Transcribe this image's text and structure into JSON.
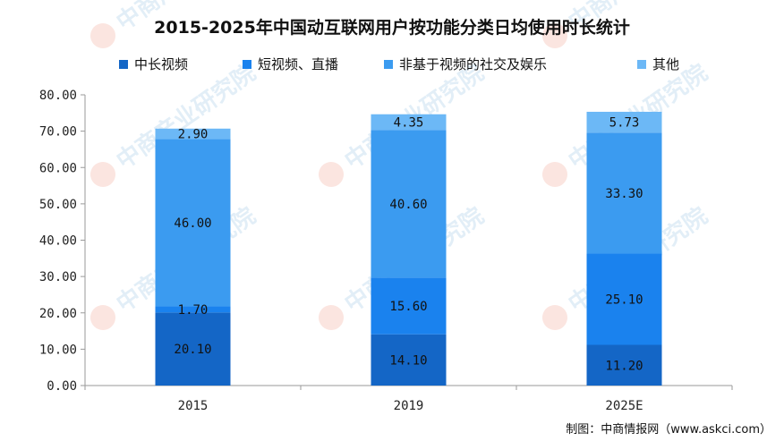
{
  "source": "制图：中商情报网（www.askci.com）",
  "watermark": {
    "text": "中商产业研究院"
  },
  "chart_data": {
    "type": "bar",
    "stacked": true,
    "title": "2015-2025年中国动互联网用户按功能分类日均使用时长统计",
    "xlabel": "",
    "ylabel": "",
    "categories": [
      "2015",
      "2019",
      "2025E"
    ],
    "ylim": [
      0,
      80
    ],
    "yticks": [
      "0.00",
      "10.00",
      "20.00",
      "30.00",
      "40.00",
      "50.00",
      "60.00",
      "70.00",
      "80.00"
    ],
    "legend_position": "top",
    "grid": false,
    "series": [
      {
        "name": "中长视频",
        "color": "#1466c6",
        "values": [
          20.1,
          14.1,
          11.2
        ],
        "labels": [
          "20.10",
          "14.10",
          "11.20"
        ]
      },
      {
        "name": "短视频、直播",
        "color": "#1a82ee",
        "values": [
          1.7,
          15.6,
          25.1
        ],
        "labels": [
          "1.70",
          "15.60",
          "25.10"
        ]
      },
      {
        "name": "非基于视频的社交及娱乐",
        "color": "#3b9bf0",
        "values": [
          46.0,
          40.6,
          33.3
        ],
        "labels": [
          "46.00",
          "40.60",
          "33.30"
        ]
      },
      {
        "name": "其他",
        "color": "#6cb8f6",
        "values": [
          2.9,
          4.35,
          5.73
        ],
        "labels": [
          "2.90",
          "4.35",
          "5.73"
        ]
      }
    ]
  }
}
